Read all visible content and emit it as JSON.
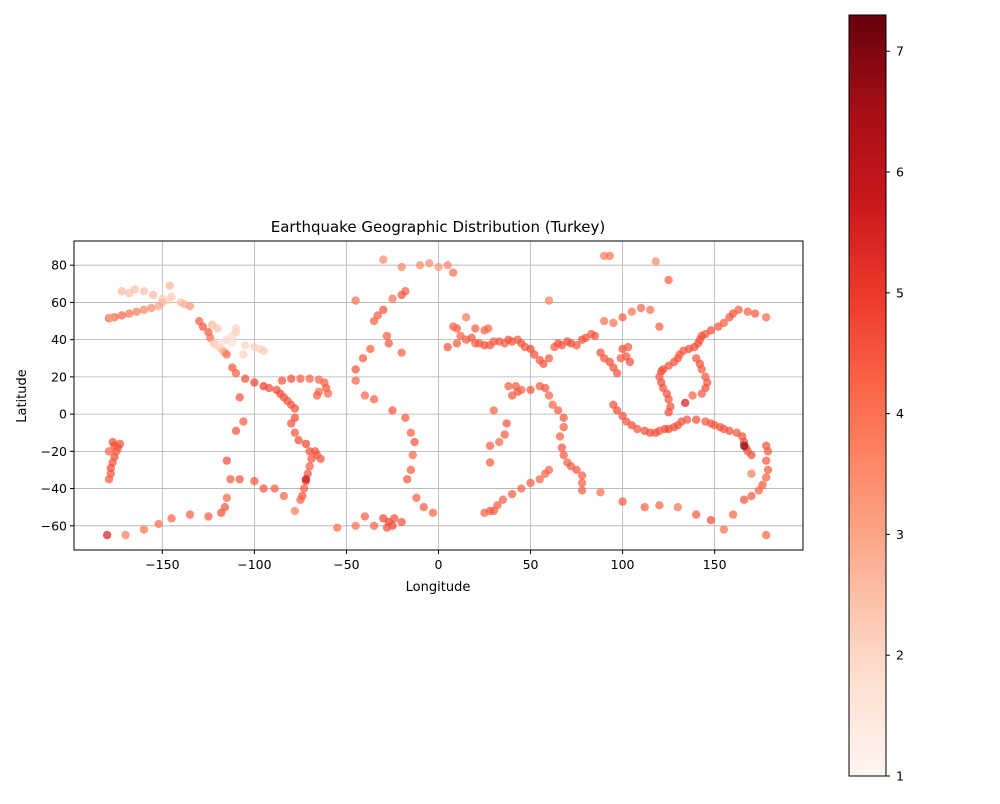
{
  "chart_data": {
    "type": "scatter",
    "title": "Earthquake Geographic Distribution (Turkey)",
    "xlabel": "Longitude",
    "ylabel": "Latitude",
    "xlim": [
      -198,
      198
    ],
    "ylim": [
      -73,
      93
    ],
    "xticks": [
      -150,
      -100,
      -50,
      0,
      50,
      100,
      150
    ],
    "yticks": [
      -60,
      -40,
      -20,
      0,
      20,
      40,
      60,
      80
    ],
    "grid": true,
    "colormap": "Reds",
    "colorbar": {
      "min": 1,
      "max": 7.3,
      "ticks": [
        1,
        2,
        3,
        4,
        5,
        6,
        7
      ]
    },
    "points": [
      [
        -165,
        67,
        2.5
      ],
      [
        -160,
        66,
        2.4
      ],
      [
        -155,
        64,
        2.6
      ],
      [
        -150,
        62,
        2.2
      ],
      [
        -147,
        61,
        2.0
      ],
      [
        -145,
        63,
        2.3
      ],
      [
        -140,
        60,
        2.5
      ],
      [
        -138,
        59,
        2.8
      ],
      [
        -135,
        58,
        3.2
      ],
      [
        -150,
        60,
        2.6
      ],
      [
        -152,
        58,
        3.0
      ],
      [
        -156,
        57,
        3.5
      ],
      [
        -160,
        56,
        3.6
      ],
      [
        -164,
        55,
        3.8
      ],
      [
        -168,
        54,
        4.0
      ],
      [
        -172,
        53,
        4.2
      ],
      [
        -176,
        52,
        4.3
      ],
      [
        -179,
        51.5,
        4.4
      ],
      [
        -178,
        51.8,
        3.0
      ],
      [
        -172,
        66,
        2.6
      ],
      [
        -168,
        65,
        2.5
      ],
      [
        -146,
        69,
        2.7
      ],
      [
        -130,
        50,
        4.3
      ],
      [
        -128,
        47,
        4.5
      ],
      [
        -125,
        44,
        4.4
      ],
      [
        -124,
        41,
        4.0
      ],
      [
        -122,
        38,
        2.4
      ],
      [
        -121,
        37,
        2.1
      ],
      [
        -119,
        36,
        2.0
      ],
      [
        -118,
        35,
        2.2
      ],
      [
        -117,
        34,
        2.5
      ],
      [
        -116,
        33,
        3.0
      ],
      [
        -115,
        32,
        4.0
      ],
      [
        -118,
        38,
        1.8
      ],
      [
        -115,
        40,
        2.0
      ],
      [
        -112,
        42,
        1.9
      ],
      [
        -110,
        44,
        2.1
      ],
      [
        -112,
        38,
        1.7
      ],
      [
        -105,
        37,
        2.0
      ],
      [
        -100,
        36,
        2.2
      ],
      [
        -97,
        35,
        2.0
      ],
      [
        -95,
        34,
        2.3
      ],
      [
        -106,
        32,
        2.1
      ],
      [
        -120,
        46,
        2.4
      ],
      [
        -123,
        48,
        2.6
      ],
      [
        -110,
        46,
        2.0
      ],
      [
        -112,
        25,
        4.5
      ],
      [
        -110,
        22,
        4.4
      ],
      [
        -105,
        19,
        4.6
      ],
      [
        -100,
        17,
        4.8
      ],
      [
        -95,
        15,
        4.9
      ],
      [
        -92,
        14,
        4.6
      ],
      [
        -88,
        13,
        4.6
      ],
      [
        -86,
        11,
        4.7
      ],
      [
        -84,
        9,
        4.6
      ],
      [
        -82,
        7,
        4.5
      ],
      [
        -80,
        5,
        4.5
      ],
      [
        -78,
        3,
        4.6
      ],
      [
        -78,
        -2,
        4.7
      ],
      [
        -80,
        -5,
        4.6
      ],
      [
        -78,
        -10,
        4.5
      ],
      [
        -76,
        -14,
        4.7
      ],
      [
        -72,
        -16,
        4.8
      ],
      [
        -70,
        -20,
        4.6
      ],
      [
        -69,
        -24,
        4.5
      ],
      [
        -70,
        -28,
        4.4
      ],
      [
        -71,
        -32,
        4.5
      ],
      [
        -72,
        -36,
        4.6
      ],
      [
        -73,
        -40,
        4.4
      ],
      [
        -74,
        -44,
        4.5
      ],
      [
        -75,
        -46,
        4.3
      ],
      [
        -66,
        -22,
        4.4
      ],
      [
        -64,
        -24,
        4.5
      ],
      [
        -67,
        -20,
        4.6
      ],
      [
        -108,
        9,
        4.5
      ],
      [
        -84,
        -44,
        4.2
      ],
      [
        -78,
        -52,
        3.8
      ],
      [
        -72,
        -35,
        5.8
      ],
      [
        -85,
        18,
        4.5
      ],
      [
        -80,
        19,
        4.6
      ],
      [
        -75,
        19,
        4.4
      ],
      [
        -70,
        19,
        4.3
      ],
      [
        -65,
        18.5,
        4.2
      ],
      [
        -62,
        17,
        4.3
      ],
      [
        -61,
        14,
        4.5
      ],
      [
        -60,
        11,
        4.2
      ],
      [
        -65,
        12,
        4.1
      ],
      [
        -66,
        10,
        4.3
      ],
      [
        -177,
        -15,
        4.6
      ],
      [
        -176,
        -17,
        4.7
      ],
      [
        -175,
        -20,
        4.5
      ],
      [
        -176,
        -23,
        4.6
      ],
      [
        -177,
        -26,
        4.5
      ],
      [
        -178,
        -29,
        4.6
      ],
      [
        -178,
        -32,
        4.5
      ],
      [
        -179,
        -35,
        4.4
      ],
      [
        -174,
        -18,
        4.4
      ],
      [
        -173,
        -16,
        4.5
      ],
      [
        -179,
        -20,
        4.2
      ],
      [
        -180,
        -65,
        5.5
      ],
      [
        -170,
        -65,
        3.8
      ],
      [
        -160,
        -62,
        4.0
      ],
      [
        -152,
        -59,
        4.1
      ],
      [
        -145,
        -56,
        4.2
      ],
      [
        -135,
        -54,
        4.3
      ],
      [
        -125,
        -55,
        4.4
      ],
      [
        -118,
        -53,
        4.6
      ],
      [
        -116,
        -50,
        4.5
      ],
      [
        -115,
        -45,
        4.2
      ],
      [
        -113,
        -35,
        4.4
      ],
      [
        -108,
        -35,
        4.5
      ],
      [
        -100,
        -36,
        4.4
      ],
      [
        -95,
        -40,
        4.5
      ],
      [
        -89,
        -40,
        4.4
      ],
      [
        -115,
        -25,
        4.6
      ],
      [
        -110,
        -9,
        4.5
      ],
      [
        -106,
        -4,
        4.4
      ],
      [
        -30,
        -56,
        4.7
      ],
      [
        -27,
        -58,
        4.8
      ],
      [
        -25,
        -60,
        4.7
      ],
      [
        -28,
        -61,
        4.6
      ],
      [
        -24,
        -56,
        4.6
      ],
      [
        -35,
        -60,
        4.2
      ],
      [
        -45,
        -60,
        4.0
      ],
      [
        -55,
        -61,
        4.1
      ],
      [
        -40,
        -55,
        4.3
      ],
      [
        -20,
        -58,
        4.5
      ],
      [
        -30,
        83,
        3.5
      ],
      [
        -20,
        79,
        3.6
      ],
      [
        -10,
        80,
        3.5
      ],
      [
        -5,
        81,
        3.4
      ],
      [
        0,
        79,
        3.3
      ],
      [
        5,
        80,
        3.6
      ],
      [
        8,
        76,
        4.1
      ],
      [
        -18,
        66,
        4.3
      ],
      [
        -20,
        64,
        4.5
      ],
      [
        -25,
        62,
        4.0
      ],
      [
        -30,
        56,
        4.5
      ],
      [
        -33,
        53,
        4.4
      ],
      [
        -35,
        50,
        4.3
      ],
      [
        -28,
        42,
        4.4
      ],
      [
        -27,
        38,
        4.5
      ],
      [
        -37,
        35,
        4.3
      ],
      [
        -41,
        30,
        4.4
      ],
      [
        -45,
        24,
        4.5
      ],
      [
        -45,
        18,
        4.3
      ],
      [
        -40,
        10,
        4.2
      ],
      [
        -35,
        8,
        4.3
      ],
      [
        -25,
        2,
        4.5
      ],
      [
        -18,
        -2,
        4.4
      ],
      [
        -15,
        -10,
        4.3
      ],
      [
        -13,
        -15,
        4.5
      ],
      [
        -14,
        -22,
        4.2
      ],
      [
        -15,
        -30,
        4.4
      ],
      [
        -17,
        -35,
        4.5
      ],
      [
        -12,
        -45,
        4.3
      ],
      [
        -8,
        -50,
        4.4
      ],
      [
        -3,
        -53,
        4.2
      ],
      [
        -45,
        61,
        4.0
      ],
      [
        -20,
        33,
        4.3
      ],
      [
        5,
        36,
        4.5
      ],
      [
        10,
        38,
        4.4
      ],
      [
        12,
        42,
        4.3
      ],
      [
        15,
        40,
        4.4
      ],
      [
        18,
        41,
        4.5
      ],
      [
        20,
        38,
        4.3
      ],
      [
        22,
        38,
        4.5
      ],
      [
        25,
        37,
        4.6
      ],
      [
        28,
        37,
        4.5
      ],
      [
        30,
        39,
        4.4
      ],
      [
        33,
        39,
        4.5
      ],
      [
        36,
        38,
        4.4
      ],
      [
        38,
        40,
        4.6
      ],
      [
        40,
        39,
        4.5
      ],
      [
        43,
        40,
        4.4
      ],
      [
        45,
        38,
        4.6
      ],
      [
        47,
        36,
        4.5
      ],
      [
        50,
        35,
        4.7
      ],
      [
        52,
        32,
        4.6
      ],
      [
        55,
        29,
        4.5
      ],
      [
        57,
        27,
        4.6
      ],
      [
        60,
        30,
        4.4
      ],
      [
        63,
        36,
        4.5
      ],
      [
        65,
        38,
        4.6
      ],
      [
        67,
        37,
        4.5
      ],
      [
        70,
        39,
        4.7
      ],
      [
        72,
        38,
        4.6
      ],
      [
        75,
        37,
        4.5
      ],
      [
        78,
        40,
        4.6
      ],
      [
        80,
        41,
        4.5
      ],
      [
        83,
        43,
        4.4
      ],
      [
        85,
        42,
        4.5
      ],
      [
        88,
        33,
        4.6
      ],
      [
        90,
        30,
        4.5
      ],
      [
        93,
        28,
        4.7
      ],
      [
        95,
        25,
        4.6
      ],
      [
        97,
        22,
        4.5
      ],
      [
        99,
        30,
        4.4
      ],
      [
        100,
        35,
        4.6
      ],
      [
        102,
        31,
        4.5
      ],
      [
        104,
        28,
        4.6
      ],
      [
        103,
        36,
        4.4
      ],
      [
        25,
        45,
        4.3
      ],
      [
        27,
        46,
        4.2
      ],
      [
        20,
        46,
        4.3
      ],
      [
        10,
        46,
        4.4
      ],
      [
        8,
        47,
        4.3
      ],
      [
        15,
        52,
        3.9
      ],
      [
        60,
        61,
        3.8
      ],
      [
        90,
        50,
        4.0
      ],
      [
        95,
        49,
        4.1
      ],
      [
        100,
        52,
        4.3
      ],
      [
        105,
        55,
        4.0
      ],
      [
        110,
        57,
        4.2
      ],
      [
        115,
        56,
        4.1
      ],
      [
        120,
        47,
        4.3
      ],
      [
        90,
        85,
        3.8
      ],
      [
        93,
        85,
        4.0
      ],
      [
        42,
        15,
        4.4
      ],
      [
        43,
        12,
        4.5
      ],
      [
        45,
        13,
        4.3
      ],
      [
        50,
        13,
        4.5
      ],
      [
        55,
        15,
        4.4
      ],
      [
        58,
        14,
        4.5
      ],
      [
        60,
        10,
        4.3
      ],
      [
        62,
        5,
        4.2
      ],
      [
        65,
        2,
        4.4
      ],
      [
        68,
        -2,
        4.5
      ],
      [
        68,
        -7,
        4.4
      ],
      [
        66,
        -12,
        4.3
      ],
      [
        67,
        -18,
        4.5
      ],
      [
        68,
        -22,
        4.4
      ],
      [
        70,
        -26,
        4.3
      ],
      [
        72,
        -28,
        4.4
      ],
      [
        75,
        -30,
        4.5
      ],
      [
        78,
        -33,
        4.4
      ],
      [
        78,
        -37,
        4.3
      ],
      [
        78,
        -41,
        4.4
      ],
      [
        60,
        -30,
        4.2
      ],
      [
        58,
        -32,
        4.3
      ],
      [
        55,
        -35,
        4.2
      ],
      [
        50,
        -37,
        4.4
      ],
      [
        45,
        -40,
        4.3
      ],
      [
        40,
        -43,
        4.4
      ],
      [
        35,
        -46,
        4.3
      ],
      [
        32,
        -49,
        4.4
      ],
      [
        28,
        -52,
        4.5
      ],
      [
        25,
        -53,
        4.3
      ],
      [
        30,
        -52,
        4.4
      ],
      [
        37,
        -5,
        4.5
      ],
      [
        36,
        -11,
        4.4
      ],
      [
        33,
        -15,
        4.2
      ],
      [
        28,
        -17,
        4.3
      ],
      [
        28,
        -26,
        4.4
      ],
      [
        38,
        15,
        4.3
      ],
      [
        40,
        10,
        4.4
      ],
      [
        30,
        2,
        4.2
      ],
      [
        95,
        5,
        4.6
      ],
      [
        97,
        2,
        4.7
      ],
      [
        100,
        -1,
        4.6
      ],
      [
        102,
        -4,
        4.5
      ],
      [
        105,
        -6,
        4.6
      ],
      [
        108,
        -8,
        4.5
      ],
      [
        112,
        -9,
        4.6
      ],
      [
        115,
        -10,
        4.7
      ],
      [
        118,
        -10,
        4.6
      ],
      [
        120,
        -9,
        4.5
      ],
      [
        123,
        -8,
        4.6
      ],
      [
        125,
        -8,
        4.7
      ],
      [
        128,
        -7,
        4.6
      ],
      [
        130,
        -6,
        4.5
      ],
      [
        132,
        -4,
        4.6
      ],
      [
        135,
        -3,
        4.5
      ],
      [
        125,
        1,
        4.7
      ],
      [
        126,
        4,
        4.6
      ],
      [
        125,
        8,
        4.5
      ],
      [
        124,
        11,
        4.6
      ],
      [
        122,
        14,
        4.5
      ],
      [
        121,
        17,
        4.6
      ],
      [
        120,
        20,
        4.5
      ],
      [
        121,
        23,
        4.6
      ],
      [
        122,
        24,
        4.7
      ],
      [
        125,
        26,
        4.5
      ],
      [
        128,
        28,
        4.6
      ],
      [
        130,
        30,
        4.5
      ],
      [
        131,
        32,
        4.4
      ],
      [
        133,
        34,
        4.5
      ],
      [
        136,
        35,
        4.6
      ],
      [
        139,
        36,
        4.7
      ],
      [
        141,
        38,
        4.6
      ],
      [
        142,
        40,
        4.5
      ],
      [
        143,
        42,
        4.6
      ],
      [
        145,
        43,
        4.5
      ],
      [
        148,
        45,
        4.6
      ],
      [
        152,
        47,
        4.5
      ],
      [
        155,
        49,
        4.4
      ],
      [
        158,
        52,
        4.5
      ],
      [
        160,
        54,
        4.6
      ],
      [
        163,
        56,
        4.4
      ],
      [
        168,
        55,
        4.3
      ],
      [
        172,
        54,
        4.4
      ],
      [
        178,
        52,
        4.2
      ],
      [
        140,
        30,
        4.5
      ],
      [
        142,
        27,
        4.6
      ],
      [
        143,
        24,
        4.5
      ],
      [
        145,
        20,
        4.4
      ],
      [
        146,
        17,
        4.5
      ],
      [
        145,
        14,
        4.6
      ],
      [
        143,
        11,
        4.4
      ],
      [
        138,
        10,
        4.3
      ],
      [
        134,
        6,
        5.5
      ],
      [
        140,
        -3,
        4.6
      ],
      [
        145,
        -4,
        4.5
      ],
      [
        148,
        -5,
        4.6
      ],
      [
        150,
        -6,
        4.5
      ],
      [
        153,
        -7,
        4.6
      ],
      [
        155,
        -8,
        4.5
      ],
      [
        158,
        -9,
        4.6
      ],
      [
        162,
        -10,
        4.5
      ],
      [
        165,
        -12,
        4.6
      ],
      [
        166,
        -15,
        4.7
      ],
      [
        167,
        -18,
        4.6
      ],
      [
        168,
        -20,
        4.5
      ],
      [
        170,
        -22,
        4.6
      ],
      [
        178,
        -17,
        4.5
      ],
      [
        179,
        -20,
        4.4
      ],
      [
        178,
        -25,
        4.5
      ],
      [
        179,
        -30,
        4.4
      ],
      [
        178,
        -34,
        4.3
      ],
      [
        176,
        -38,
        4.4
      ],
      [
        174,
        -41,
        4.3
      ],
      [
        170,
        -44,
        4.4
      ],
      [
        166,
        -46,
        4.5
      ],
      [
        160,
        -54,
        4.2
      ],
      [
        155,
        -62,
        4.0
      ],
      [
        148,
        -57,
        4.6
      ],
      [
        140,
        -54,
        4.4
      ],
      [
        178,
        -65,
        4.2
      ],
      [
        130,
        -50,
        4.0
      ],
      [
        120,
        -49,
        4.2
      ],
      [
        112,
        -50,
        4.3
      ],
      [
        100,
        -47,
        4.4
      ],
      [
        88,
        -42,
        4.1
      ],
      [
        166,
        -17,
        6.8
      ],
      [
        170,
        -32,
        3.8
      ],
      [
        125,
        72,
        4.3
      ],
      [
        118,
        82,
        3.5
      ]
    ]
  }
}
